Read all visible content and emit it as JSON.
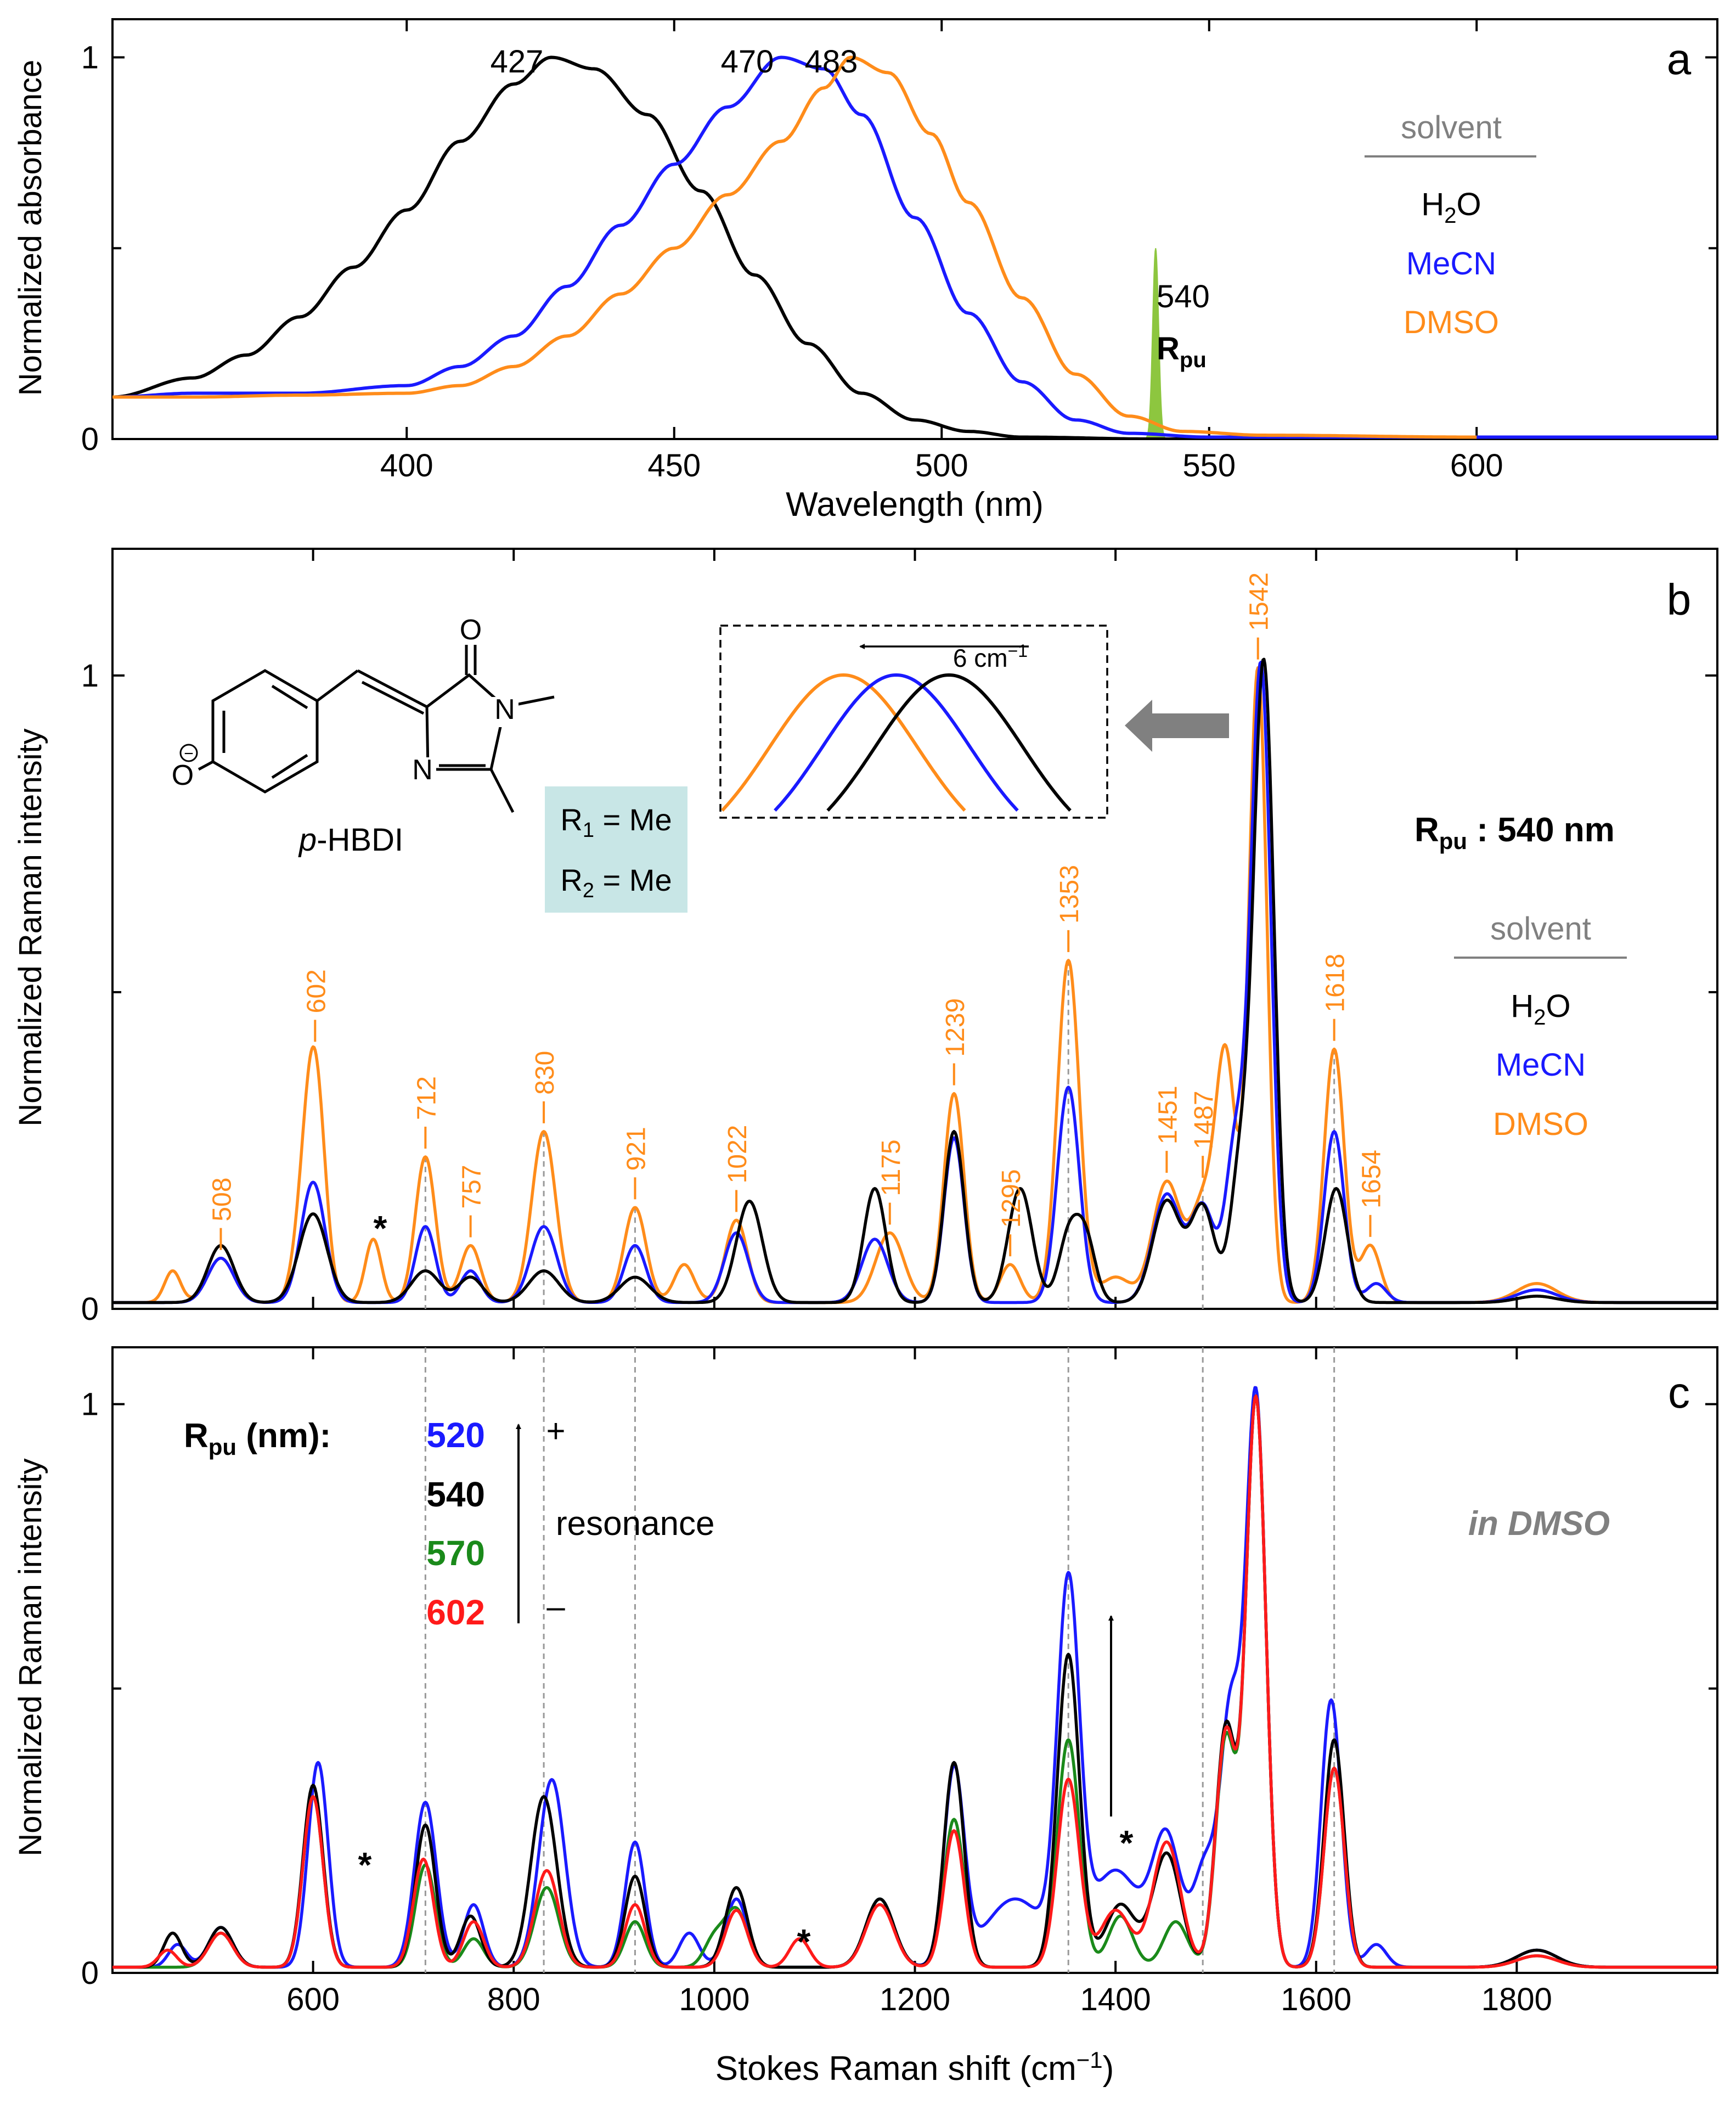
{
  "colors": {
    "h2o": "#000000",
    "mecn": "#1a1aff",
    "dmso": "#ff8c1a",
    "c520": "#1a1aff",
    "c540": "#000000",
    "c570": "#1a8a1a",
    "c602": "#ff1a1a",
    "rpu_fill": "#8dc63f",
    "solvent_gray": "#808080",
    "box_teal": "#c8e6e6",
    "gray_arrow": "#808080"
  },
  "chart_data": [
    {
      "panel": "a",
      "type": "line",
      "xlabel": "Wavelength (nm)",
      "ylabel": "Normalized absorbance",
      "xlim": [
        345,
        645
      ],
      "ylim": [
        0,
        1.1
      ],
      "x_ticks": [
        "400",
        "450",
        "500",
        "550",
        "600"
      ],
      "y_ticks": [
        "0",
        "1"
      ],
      "series": [
        {
          "name": "H2O",
          "peak": 427,
          "points": [
            [
              345,
              0.11
            ],
            [
              360,
              0.16
            ],
            [
              370,
              0.22
            ],
            [
              380,
              0.32
            ],
            [
              390,
              0.45
            ],
            [
              400,
              0.6
            ],
            [
              410,
              0.78
            ],
            [
              420,
              0.93
            ],
            [
              427,
              1.0
            ],
            [
              435,
              0.97
            ],
            [
              445,
              0.85
            ],
            [
              455,
              0.65
            ],
            [
              465,
              0.43
            ],
            [
              475,
              0.25
            ],
            [
              485,
              0.12
            ],
            [
              495,
              0.05
            ],
            [
              505,
              0.02
            ],
            [
              515,
              0.005
            ],
            [
              540,
              0.0
            ],
            [
              600,
              0.0
            ]
          ]
        },
        {
          "name": "MeCN",
          "peak": 470,
          "points": [
            [
              345,
              0.11
            ],
            [
              360,
              0.12
            ],
            [
              380,
              0.12
            ],
            [
              400,
              0.14
            ],
            [
              410,
              0.19
            ],
            [
              420,
              0.27
            ],
            [
              430,
              0.4
            ],
            [
              440,
              0.56
            ],
            [
              450,
              0.72
            ],
            [
              460,
              0.87
            ],
            [
              470,
              1.0
            ],
            [
              478,
              0.97
            ],
            [
              485,
              0.85
            ],
            [
              495,
              0.58
            ],
            [
              505,
              0.33
            ],
            [
              515,
              0.15
            ],
            [
              525,
              0.05
            ],
            [
              535,
              0.015
            ],
            [
              550,
              0.005
            ],
            [
              600,
              0.005
            ],
            [
              645,
              0.005
            ]
          ]
        },
        {
          "name": "DMSO",
          "peak": 483,
          "points": [
            [
              345,
              0.11
            ],
            [
              360,
              0.11
            ],
            [
              380,
              0.115
            ],
            [
              400,
              0.12
            ],
            [
              410,
              0.14
            ],
            [
              420,
              0.19
            ],
            [
              430,
              0.27
            ],
            [
              440,
              0.38
            ],
            [
              450,
              0.5
            ],
            [
              460,
              0.64
            ],
            [
              470,
              0.78
            ],
            [
              478,
              0.92
            ],
            [
              483,
              1.0
            ],
            [
              490,
              0.96
            ],
            [
              498,
              0.8
            ],
            [
              505,
              0.62
            ],
            [
              515,
              0.37
            ],
            [
              525,
              0.17
            ],
            [
              535,
              0.06
            ],
            [
              545,
              0.02
            ],
            [
              560,
              0.01
            ],
            [
              600,
              0.005
            ]
          ]
        }
      ],
      "peak_labels": [
        "427",
        "470",
        "483"
      ],
      "rpu": {
        "wavelength": 540,
        "label_num": "540",
        "label_main": "R",
        "label_sub": "pu"
      },
      "legend": {
        "title": "solvent",
        "items": [
          "H",
          "2",
          "O",
          "MeCN",
          "DMSO"
        ],
        "position": "right"
      }
    },
    {
      "panel": "b",
      "type": "line",
      "xlabel": "",
      "ylabel": "Normalized Raman intensity",
      "xlim": [
        400,
        2000
      ],
      "ylim": [
        0,
        1.2
      ],
      "y_ticks": [
        "0",
        "1"
      ],
      "series": [
        {
          "name": "H2O",
          "peaks": [
            [
              508,
              0.09,
              13
            ],
            [
              600,
              0.14,
              14
            ],
            [
              712,
              0.05,
              14
            ],
            [
              757,
              0.04,
              12
            ],
            [
              830,
              0.05,
              15
            ],
            [
              921,
              0.04,
              15
            ],
            [
              1035,
              0.16,
              13
            ],
            [
              1160,
              0.18,
              11
            ],
            [
              1239,
              0.27,
              10
            ],
            [
              1305,
              0.18,
              12
            ],
            [
              1353,
              0.1,
              10
            ],
            [
              1370,
              0.1,
              10
            ],
            [
              1451,
              0.16,
              14
            ],
            [
              1487,
              0.15,
              12
            ],
            [
              1525,
              0.22,
              10
            ],
            [
              1548,
              1.0,
              10
            ],
            [
              1620,
              0.18,
              11
            ],
            [
              1820,
              0.01,
              20
            ]
          ]
        },
        {
          "name": "MeCN",
          "peaks": [
            [
              508,
              0.07,
              13
            ],
            [
              600,
              0.19,
              12
            ],
            [
              712,
              0.12,
              10
            ],
            [
              757,
              0.05,
              10
            ],
            [
              830,
              0.12,
              13
            ],
            [
              921,
              0.09,
              11
            ],
            [
              1022,
              0.11,
              12
            ],
            [
              1160,
              0.1,
              13
            ],
            [
              1239,
              0.26,
              10
            ],
            [
              1353,
              0.34,
              11
            ],
            [
              1451,
              0.17,
              14
            ],
            [
              1487,
              0.15,
              12
            ],
            [
              1520,
              0.25,
              10
            ],
            [
              1545,
              1.0,
              10
            ],
            [
              1618,
              0.27,
              10
            ],
            [
              1660,
              0.03,
              10
            ],
            [
              1820,
              0.02,
              20
            ]
          ]
        },
        {
          "name": "DMSO",
          "peaks": [
            [
              460,
              0.05,
              8
            ],
            [
              508,
              0.07,
              13
            ],
            [
              590,
              0.1,
              10
            ],
            [
              602,
              0.35,
              10
            ],
            [
              660,
              0.1,
              8
            ],
            [
              712,
              0.23,
              10
            ],
            [
              757,
              0.09,
              10
            ],
            [
              830,
              0.27,
              12
            ],
            [
              921,
              0.15,
              11
            ],
            [
              970,
              0.06,
              10
            ],
            [
              1022,
              0.13,
              11
            ],
            [
              1175,
              0.11,
              14
            ],
            [
              1239,
              0.33,
              10
            ],
            [
              1295,
              0.06,
              10
            ],
            [
              1353,
              0.54,
              11
            ],
            [
              1400,
              0.04,
              15
            ],
            [
              1451,
              0.19,
              14
            ],
            [
              1487,
              0.15,
              12
            ],
            [
              1510,
              0.38,
              10
            ],
            [
              1542,
              1.0,
              9
            ],
            [
              1618,
              0.4,
              10
            ],
            [
              1654,
              0.09,
              10
            ],
            [
              1820,
              0.03,
              20
            ]
          ]
        }
      ],
      "peak_labels": [
        "508",
        "602",
        "712",
        "757",
        "830",
        "921",
        "1022",
        "1175",
        "1239",
        "1295",
        "1353",
        "1451",
        "1487",
        "1542",
        "1618",
        "1654"
      ],
      "asterisk": "*",
      "molecule_label": {
        "prefix": "p",
        "name": "-HBDI",
        "o_label": "O",
        "n_label": "N",
        "charge": "−"
      },
      "substituents": [
        {
          "main": "R",
          "sub": "1",
          "rest": " = Me"
        },
        {
          "main": "R",
          "sub": "2",
          "rest": " = Me"
        }
      ],
      "inset_label": "6 cm",
      "inset_label_sup": "−1",
      "rpu_label": {
        "main": "R",
        "sub": "pu",
        "rest": " : 540 nm"
      },
      "legend": {
        "title": "solvent",
        "items": [
          "H",
          "2",
          "O",
          "MeCN",
          "DMSO"
        ],
        "position": "right"
      }
    },
    {
      "panel": "c",
      "type": "line",
      "xlabel": "Stokes Raman shift (cm",
      "xlabel_sup": "−1",
      "xlabel_end": ")",
      "ylabel": "Normalized Raman intensity",
      "xlim": [
        400,
        2000
      ],
      "ylim": [
        0,
        1.1
      ],
      "x_ticks": [
        "600",
        "800",
        "1000",
        "1200",
        "1400",
        "1600",
        "1800"
      ],
      "y_ticks": [
        "0",
        "1"
      ],
      "series": [
        {
          "name": "520",
          "peaks": [
            [
              465,
              0.04,
              9
            ],
            [
              508,
              0.07,
              12
            ],
            [
              605,
              0.36,
              10
            ],
            [
              712,
              0.29,
              11
            ],
            [
              760,
              0.11,
              10
            ],
            [
              838,
              0.33,
              13
            ],
            [
              921,
              0.22,
              10
            ],
            [
              975,
              0.06,
              10
            ],
            [
              1022,
              0.12,
              11
            ],
            [
              1165,
              0.12,
              14
            ],
            [
              1239,
              0.34,
              10
            ],
            [
              1300,
              0.12,
              30
            ],
            [
              1353,
              0.64,
              11
            ],
            [
              1400,
              0.17,
              25
            ],
            [
              1451,
              0.22,
              14
            ],
            [
              1490,
              0.18,
              12
            ],
            [
              1515,
              0.43,
              10
            ],
            [
              1540,
              1.0,
              10
            ],
            [
              1615,
              0.47,
              10
            ],
            [
              1660,
              0.04,
              10
            ],
            [
              1820,
              0.03,
              20
            ]
          ]
        },
        {
          "name": "540",
          "peaks": [
            [
              460,
              0.06,
              9
            ],
            [
              508,
              0.07,
              12
            ],
            [
              600,
              0.32,
              10
            ],
            [
              712,
              0.25,
              10
            ],
            [
              757,
              0.09,
              10
            ],
            [
              830,
              0.3,
              13
            ],
            [
              921,
              0.16,
              10
            ],
            [
              1022,
              0.14,
              11
            ],
            [
              1165,
              0.12,
              14
            ],
            [
              1239,
              0.36,
              10
            ],
            [
              1353,
              0.55,
              11
            ],
            [
              1405,
              0.11,
              15
            ],
            [
              1451,
              0.2,
              14
            ],
            [
              1510,
              0.42,
              10
            ],
            [
              1540,
              1.0,
              10
            ],
            [
              1618,
              0.4,
              10
            ],
            [
              1820,
              0.03,
              20
            ]
          ]
        },
        {
          "name": "570",
          "peaks": [
            [
              508,
              0.06,
              12
            ],
            [
              600,
              0.3,
              10
            ],
            [
              712,
              0.18,
              10
            ],
            [
              760,
              0.05,
              10
            ],
            [
              833,
              0.14,
              12
            ],
            [
              921,
              0.08,
              10
            ],
            [
              1000,
              0.05,
              10
            ],
            [
              1022,
              0.1,
              11
            ],
            [
              1165,
              0.12,
              14
            ],
            [
              1239,
              0.26,
              10
            ],
            [
              1353,
              0.4,
              11
            ],
            [
              1405,
              0.09,
              12
            ],
            [
              1460,
              0.08,
              12
            ],
            [
              1510,
              0.4,
              10
            ],
            [
              1540,
              1.0,
              10
            ],
            [
              1618,
              0.35,
              10
            ],
            [
              1820,
              0.02,
              20
            ]
          ]
        },
        {
          "name": "602",
          "peaks": [
            [
              455,
              0.03,
              9
            ],
            [
              508,
              0.06,
              12
            ],
            [
              600,
              0.3,
              10
            ],
            [
              710,
              0.19,
              10
            ],
            [
              760,
              0.08,
              10
            ],
            [
              833,
              0.17,
              12
            ],
            [
              921,
              0.11,
              10
            ],
            [
              1022,
              0.1,
              11
            ],
            [
              1085,
              0.05,
              10
            ],
            [
              1165,
              0.11,
              14
            ],
            [
              1239,
              0.24,
              10
            ],
            [
              1353,
              0.33,
              11
            ],
            [
              1400,
              0.1,
              15
            ],
            [
              1451,
              0.22,
              14
            ],
            [
              1510,
              0.41,
              10
            ],
            [
              1540,
              1.0,
              10
            ],
            [
              1618,
              0.35,
              10
            ],
            [
              1820,
              0.02,
              20
            ]
          ]
        }
      ],
      "rpu_legend": {
        "main": "R",
        "sub": "pu",
        "rest": " (nm):",
        "values": [
          "520",
          "540",
          "570",
          "602"
        ]
      },
      "resonance_label": "resonance",
      "plus": "+",
      "minus": "–",
      "asterisk": "*",
      "note": "in DMSO"
    }
  ],
  "panel_letters": [
    "a",
    "b",
    "c"
  ]
}
